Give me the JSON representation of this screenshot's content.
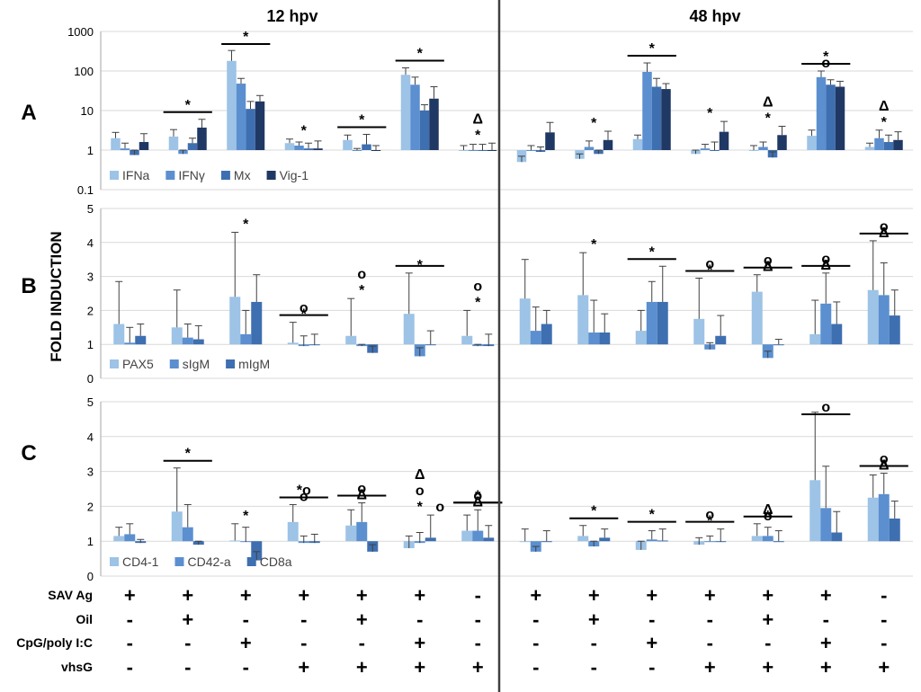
{
  "header": {
    "left": "12 hpv",
    "right": "48 hpv"
  },
  "yaxis_label": "FOLD INDUCTION",
  "colors": {
    "c1": "#9dc3e6",
    "c2": "#5b8fd0",
    "c3": "#3e6fb0",
    "c4": "#203864",
    "grid": "#d9d9d9",
    "axis": "#a6a6a6"
  },
  "chart_data": [
    {
      "panel": "A",
      "type": "bar",
      "yscale": "log",
      "ylim": [
        0.1,
        1000
      ],
      "yticks": [
        "0.1",
        "1",
        "10",
        "100",
        "1000"
      ],
      "series": [
        {
          "name": "IFNa",
          "color": "#9dc3e6"
        },
        {
          "name": "IFNγ",
          "color": "#5b8fd0"
        },
        {
          "name": "Mx",
          "color": "#3e6fb0"
        },
        {
          "name": "Vig-1",
          "color": "#203864"
        }
      ],
      "groups": [
        {
          "v": [
            2.0,
            1.1,
            0.75,
            1.6
          ],
          "e": [
            2.8,
            1.5,
            1.0,
            2.6
          ]
        },
        {
          "v": [
            2.2,
            0.8,
            1.5,
            3.7
          ],
          "e": [
            3.3,
            1.0,
            2.0,
            6.0
          ]
        },
        {
          "v": [
            180,
            48,
            11,
            17
          ],
          "e": [
            330,
            65,
            17,
            24
          ]
        },
        {
          "v": [
            1.5,
            1.3,
            1.1,
            1.1
          ],
          "e": [
            1.9,
            1.6,
            1.5,
            1.7
          ]
        },
        {
          "v": [
            1.8,
            1.0,
            1.4,
            1.0
          ],
          "e": [
            2.4,
            1.1,
            2.5,
            1.3
          ]
        },
        {
          "v": [
            80,
            45,
            10,
            20
          ],
          "e": [
            120,
            70,
            14,
            40
          ]
        },
        {
          "v": [
            1.0,
            1.0,
            0.98,
            0.95
          ],
          "e": [
            1.3,
            1.4,
            1.4,
            1.5
          ]
        },
        {
          "v": [
            0.5,
            1.0,
            0.9,
            2.8
          ],
          "e": [
            0.7,
            1.3,
            1.2,
            5.0
          ]
        },
        {
          "v": [
            0.6,
            1.2,
            0.8,
            1.8
          ],
          "e": [
            0.8,
            1.7,
            1.0,
            3.0
          ]
        },
        {
          "v": [
            1.9,
            95,
            40,
            35
          ],
          "e": [
            2.4,
            160,
            65,
            48
          ]
        },
        {
          "v": [
            0.8,
            1.1,
            1.0,
            2.9
          ],
          "e": [
            1.0,
            1.4,
            1.6,
            5.3
          ]
        },
        {
          "v": [
            1.0,
            1.2,
            0.65,
            2.4
          ],
          "e": [
            1.3,
            1.6,
            0.9,
            4.0
          ]
        },
        {
          "v": [
            2.3,
            70,
            45,
            40
          ],
          "e": [
            3.2,
            100,
            60,
            55
          ]
        },
        {
          "v": [
            1.2,
            2.0,
            1.6,
            1.8
          ],
          "e": [
            1.5,
            3.2,
            2.4,
            2.9
          ]
        }
      ],
      "annotations": [
        {
          "g": 1,
          "text": "*",
          "bar": true
        },
        {
          "g": 2,
          "text": "*",
          "bar": true
        },
        {
          "g": 3,
          "text": "*",
          "bar": false
        },
        {
          "g": 4,
          "text": "*",
          "bar": true
        },
        {
          "g": 5,
          "text": "*",
          "bar": true
        },
        {
          "g": 6,
          "text": "Δ",
          "bar": false,
          "row": 1
        },
        {
          "g": 6,
          "text": "*",
          "bar": false
        },
        {
          "g": 8,
          "text": "*",
          "bar": false
        },
        {
          "g": 9,
          "text": "*",
          "bar": true
        },
        {
          "g": 10,
          "text": "*",
          "bar": false
        },
        {
          "g": 11,
          "text": "Δ",
          "bar": false,
          "row": 1
        },
        {
          "g": 11,
          "text": "*",
          "bar": false
        },
        {
          "g": 12,
          "text": "*",
          "bar": true
        },
        {
          "g": 12,
          "text": "o",
          "bar": false
        },
        {
          "g": 13,
          "text": "Δ",
          "bar": false,
          "row": 1
        },
        {
          "g": 13,
          "text": "*",
          "bar": false
        }
      ]
    },
    {
      "panel": "B",
      "type": "bar",
      "yscale": "linear",
      "ylim": [
        0,
        5
      ],
      "yticks": [
        "0",
        "1",
        "2",
        "3",
        "4",
        "5"
      ],
      "series": [
        {
          "name": "PAX5",
          "color": "#9dc3e6"
        },
        {
          "name": "sIgM",
          "color": "#5b8fd0"
        },
        {
          "name": "mIgM",
          "color": "#3e6fb0"
        }
      ],
      "groups": [
        {
          "v": [
            1.6,
            1.05,
            1.25
          ],
          "e": [
            2.85,
            1.5,
            1.6
          ]
        },
        {
          "v": [
            1.5,
            1.2,
            1.15
          ],
          "e": [
            2.6,
            1.6,
            1.55
          ]
        },
        {
          "v": [
            2.4,
            1.3,
            2.25
          ],
          "e": [
            4.3,
            2.0,
            3.05
          ]
        },
        {
          "v": [
            1.05,
            0.95,
            0.98
          ],
          "e": [
            1.65,
            1.25,
            1.3
          ]
        },
        {
          "v": [
            1.25,
            0.95,
            0.75
          ],
          "e": [
            2.35,
            1.0,
            0.95
          ]
        },
        {
          "v": [
            1.9,
            0.65,
            1.0
          ],
          "e": [
            3.1,
            0.9,
            1.4
          ]
        },
        {
          "v": [
            1.25,
            0.95,
            0.95
          ],
          "e": [
            2.0,
            1.0,
            1.3
          ]
        },
        {
          "v": [
            2.35,
            1.4,
            1.6
          ],
          "e": [
            3.5,
            2.1,
            2.0
          ]
        },
        {
          "v": [
            2.45,
            1.35,
            1.35
          ],
          "e": [
            3.7,
            2.3,
            1.9
          ]
        },
        {
          "v": [
            1.4,
            2.25,
            2.25
          ],
          "e": [
            2.0,
            2.85,
            3.3
          ]
        },
        {
          "v": [
            1.75,
            0.85,
            1.25
          ],
          "e": [
            2.95,
            1.05,
            1.85
          ]
        },
        {
          "v": [
            2.55,
            0.6,
            1.0
          ],
          "e": [
            3.05,
            0.8,
            1.15
          ]
        },
        {
          "v": [
            1.3,
            2.2,
            1.6
          ],
          "e": [
            2.3,
            3.1,
            2.25
          ]
        },
        {
          "v": [
            2.6,
            2.45,
            1.85
          ],
          "e": [
            4.05,
            3.4,
            2.6
          ]
        }
      ],
      "annotations": [
        {
          "g": 2,
          "text": "*",
          "bar": false
        },
        {
          "g": 3,
          "text": "o",
          "bar": true
        },
        {
          "g": 3,
          "text": "*",
          "bar": false
        },
        {
          "g": 4,
          "text": "o",
          "bar": false,
          "row": 1
        },
        {
          "g": 4,
          "text": "*",
          "bar": false
        },
        {
          "g": 5,
          "text": "*",
          "bar": false
        },
        {
          "g": 5,
          "text": "",
          "bar": true
        },
        {
          "g": 6,
          "text": "o",
          "bar": false,
          "row": 1
        },
        {
          "g": 6,
          "text": "*",
          "bar": false
        },
        {
          "g": 8,
          "text": "*",
          "bar": false
        },
        {
          "g": 9,
          "text": "*",
          "bar": true
        },
        {
          "g": 10,
          "text": "o",
          "bar": true
        },
        {
          "g": 10,
          "text": "*",
          "bar": false
        },
        {
          "g": 11,
          "text": "o",
          "bar": true
        },
        {
          "g": 11,
          "text": "Δ",
          "bar": false
        },
        {
          "g": 11,
          "text": "*",
          "bar": false
        },
        {
          "g": 12,
          "text": "o",
          "bar": true
        },
        {
          "g": 12,
          "text": "Δ",
          "bar": false
        },
        {
          "g": 12,
          "text": "*",
          "bar": false
        },
        {
          "g": 13,
          "text": "o",
          "bar": true
        },
        {
          "g": 13,
          "text": "Δ",
          "bar": false
        },
        {
          "g": 13,
          "text": "*",
          "bar": false
        }
      ]
    },
    {
      "panel": "C",
      "type": "bar",
      "yscale": "linear",
      "ylim": [
        0,
        5
      ],
      "yticks": [
        "0",
        "1",
        "2",
        "3",
        "4",
        "5"
      ],
      "series": [
        {
          "name": "CD4-1",
          "color": "#9dc3e6"
        },
        {
          "name": "CD42-a",
          "color": "#5b8fd0"
        },
        {
          "name": "CD8a",
          "color": "#3e6fb0"
        }
      ],
      "groups": [
        {
          "v": [
            1.15,
            1.2,
            0.95
          ],
          "e": [
            1.4,
            1.5,
            1.05
          ]
        },
        {
          "v": [
            1.85,
            1.4,
            0.9
          ],
          "e": [
            3.1,
            2.05,
            1.0
          ]
        },
        {
          "v": [
            1.02,
            0.98,
            0.45
          ],
          "e": [
            1.5,
            1.4,
            0.7
          ]
        },
        {
          "v": [
            1.55,
            0.95,
            0.95
          ],
          "e": [
            2.05,
            1.15,
            1.2
          ]
        },
        {
          "v": [
            1.45,
            1.55,
            0.7
          ],
          "e": [
            1.9,
            2.1,
            0.9
          ]
        },
        {
          "v": [
            0.8,
            0.95,
            1.1
          ],
          "e": [
            1.15,
            1.25,
            1.75
          ]
        },
        {
          "v": [
            1.3,
            1.3,
            1.1
          ],
          "e": [
            1.75,
            1.9,
            1.45
          ]
        },
        {
          "v": [
            1.0,
            0.7,
            1.0
          ],
          "e": [
            1.35,
            0.85,
            1.3
          ]
        },
        {
          "v": [
            1.15,
            0.85,
            1.1
          ],
          "e": [
            1.45,
            1.0,
            1.35
          ]
        },
        {
          "v": [
            0.75,
            1.05,
            1.02
          ],
          "e": [
            1.0,
            1.3,
            1.35
          ]
        },
        {
          "v": [
            0.9,
            1.0,
            0.98
          ],
          "e": [
            1.1,
            1.15,
            1.35
          ]
        },
        {
          "v": [
            1.15,
            1.15,
            1.0
          ],
          "e": [
            1.5,
            1.4,
            1.3
          ]
        },
        {
          "v": [
            2.75,
            1.95,
            1.25
          ],
          "e": [
            4.7,
            3.15,
            1.85
          ]
        },
        {
          "v": [
            2.25,
            2.35,
            1.65
          ],
          "e": [
            2.9,
            2.95,
            2.15
          ]
        }
      ],
      "annotations": [
        {
          "g": 1,
          "text": "*",
          "bar": true
        },
        {
          "g": 2,
          "text": "*",
          "bar": false
        },
        {
          "g": 3,
          "text": "*o",
          "bar": true
        },
        {
          "g": 3,
          "text": "o",
          "bar": false
        },
        {
          "g": 4,
          "text": "o",
          "bar": true
        },
        {
          "g": 4,
          "text": "Δ",
          "bar": false
        },
        {
          "g": 5,
          "text": "Δ",
          "bar": false,
          "row": 2
        },
        {
          "g": 5,
          "text": "o",
          "bar": false,
          "row": 1
        },
        {
          "g": 5,
          "text": "*",
          "bar": false
        },
        {
          "g": 5,
          "text": "o",
          "bar": false,
          "side": true
        },
        {
          "g": 6,
          "text": "o",
          "bar": true
        },
        {
          "g": 6,
          "text": "*",
          "bar": true
        },
        {
          "g": 6,
          "text": "Δ",
          "bar": false
        },
        {
          "g": 8,
          "text": "*",
          "bar": true
        },
        {
          "g": 9,
          "text": "*",
          "bar": true
        },
        {
          "g": 10,
          "text": "o",
          "bar": true
        },
        {
          "g": 10,
          "text": "*",
          "bar": false
        },
        {
          "g": 11,
          "text": "Δ",
          "bar": true
        },
        {
          "g": 11,
          "text": "o",
          "bar": false
        },
        {
          "g": 11,
          "text": "*",
          "bar": false
        },
        {
          "g": 12,
          "text": "o",
          "bar": true
        },
        {
          "g": 13,
          "text": "o",
          "bar": true
        },
        {
          "g": 13,
          "text": "Δ",
          "bar": false
        },
        {
          "g": 13,
          "text": "*",
          "bar": false
        }
      ]
    }
  ],
  "treatment_table": {
    "rows": [
      {
        "label": "SAV Ag",
        "values": [
          "+",
          "+",
          "+",
          "+",
          "+",
          "+",
          "-",
          "+",
          "+",
          "+",
          "+",
          "+",
          "+",
          "-"
        ]
      },
      {
        "label": "Oil",
        "values": [
          "-",
          "+",
          "-",
          "-",
          "+",
          "-",
          "-",
          "-",
          "+",
          "-",
          "-",
          "+",
          "-",
          "-"
        ]
      },
      {
        "label": "CpG/poly I:C",
        "values": [
          "-",
          "-",
          "+",
          "-",
          "-",
          "+",
          "-",
          "-",
          "-",
          "+",
          "-",
          "-",
          "+",
          "-"
        ]
      },
      {
        "label": "vhsG",
        "values": [
          "-",
          "-",
          "-",
          "+",
          "+",
          "+",
          "+",
          "-",
          "-",
          "-",
          "+",
          "+",
          "+",
          "+"
        ]
      }
    ]
  }
}
